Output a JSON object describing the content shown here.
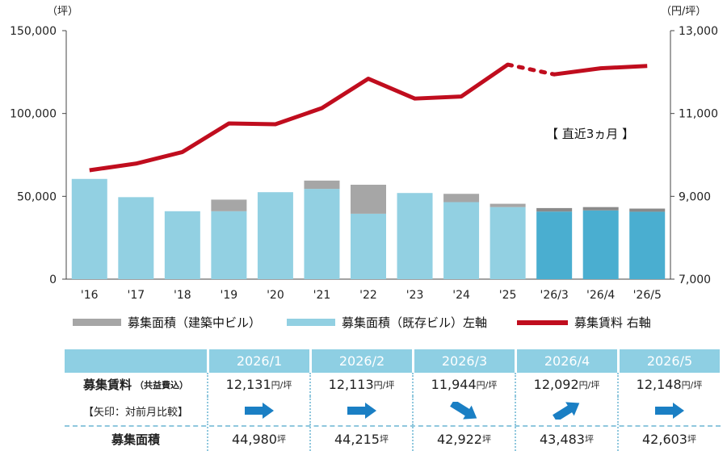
{
  "chart_data": {
    "type": "bar+line",
    "left_unit": "（坪）",
    "right_unit": "（円/坪）",
    "categories": [
      "'16",
      "'17",
      "'18",
      "'19",
      "'20",
      "'21",
      "'22",
      "'23",
      "'24",
      "'25",
      "'26/3",
      "'26/4",
      "'26/5"
    ],
    "left_ticks": [
      "0",
      "50,000",
      "100,000",
      "150,000"
    ],
    "right_ticks": [
      "7,000",
      "9,000",
      "11,000",
      "13,000"
    ],
    "left_ylim": [
      0,
      150000
    ],
    "right_ylim": [
      7000,
      13000
    ],
    "series": [
      {
        "name": "募集面積（既存ビル）左軸",
        "type": "bar",
        "values": [
          60500,
          49500,
          41000,
          41000,
          52500,
          54500,
          39500,
          52000,
          46500,
          43500,
          40800,
          41500,
          40700
        ]
      },
      {
        "name": "募集面積（建築中ビル）",
        "type": "bar-stack",
        "values": [
          0,
          0,
          0,
          7000,
          0,
          5000,
          17500,
          0,
          5000,
          2000,
          2100,
          2000,
          1900
        ]
      },
      {
        "name": "募集賃料 右軸",
        "type": "line",
        "values": [
          9630,
          9790,
          10070,
          10760,
          10740,
          11130,
          11840,
          11360,
          11410,
          12180,
          11944,
          12092,
          12148
        ],
        "dotted_segment": [
          9,
          10
        ]
      }
    ],
    "recent_colors": {
      "existing": "#4aaed0",
      "construction": "#8a8a8a"
    },
    "colors": {
      "existing": "#92d0e2",
      "construction": "#a6a6a6",
      "line": "#c00d1e"
    },
    "annotation": "【 直近3ヵ月 】",
    "grid": false,
    "legend_position": "bottom"
  },
  "table": {
    "months": [
      "2026/1",
      "2026/2",
      "2026/3",
      "2026/4",
      "2026/5"
    ],
    "rent_label": "募集賃料",
    "rent_label_sub": "（共益費込）",
    "arrow_label": "【矢印：対前月比較】",
    "area_label": "募集面積",
    "rent_values": [
      "12,131",
      "12,113",
      "11,944",
      "12,092",
      "12,148"
    ],
    "rent_unit": "円/坪",
    "arrows": [
      "right",
      "right",
      "down-right",
      "up-right",
      "right"
    ],
    "area_values": [
      "44,980",
      "44,215",
      "42,922",
      "43,483",
      "42,603"
    ],
    "area_unit": "坪",
    "arrow_color": "#1a7fc4"
  }
}
